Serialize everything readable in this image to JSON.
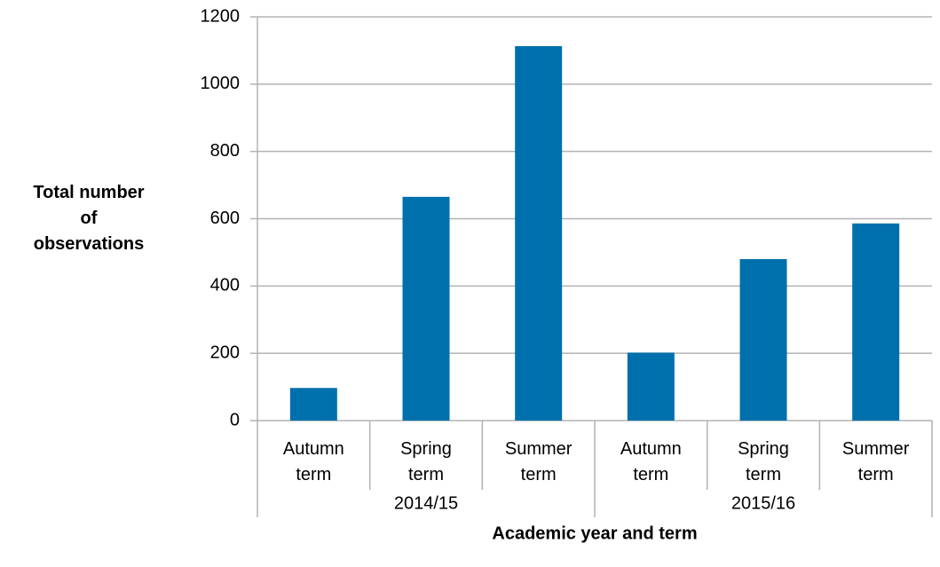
{
  "chart_data": {
    "type": "bar",
    "groups": [
      {
        "name": "2014/15",
        "categories": [
          "Autumn term",
          "Spring term",
          "Summer term"
        ]
      },
      {
        "name": "2015/16",
        "categories": [
          "Autumn term",
          "Spring term",
          "Summer term"
        ]
      }
    ],
    "values": [
      97,
      665,
      1113,
      202,
      480,
      586
    ],
    "color": "#0070ad",
    "ylim": [
      0,
      1200
    ],
    "yticks": [
      0,
      200,
      400,
      600,
      800,
      1000,
      1200
    ],
    "grid": true,
    "ylabel": "Total number of observations",
    "xlabel": "Academic year and term"
  }
}
